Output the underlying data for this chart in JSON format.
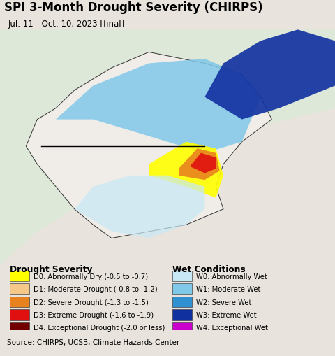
{
  "title": "SPI 3-Month Drought Severity (CHIRPS)",
  "subtitle": "Jul. 11 - Oct. 10, 2023 [final]",
  "source_text": "Source: CHIRPS, UCSB, Climate Hazards Center",
  "title_fontsize": 12,
  "subtitle_fontsize": 8.5,
  "source_fontsize": 7.5,
  "background_color": "#e8e4dd",
  "ocean_color": "#b8eef8",
  "land_color": "#f0ede8",
  "map_bg_color": "#dde8d8",
  "drought_legend": [
    {
      "code": "D0",
      "label": "D0: Abnormally Dry (-0.5 to -0.7)",
      "color": "#ffff00"
    },
    {
      "code": "D1",
      "label": "D1: Moderate Drought (-0.8 to -1.2)",
      "color": "#f5c88a"
    },
    {
      "code": "D2",
      "label": "D2: Severe Drought (-1.3 to -1.5)",
      "color": "#e8821e"
    },
    {
      "code": "D3",
      "label": "D3: Extreme Drought (-1.6 to -1.9)",
      "color": "#e01010"
    },
    {
      "code": "D4",
      "label": "D4: Exceptional Drought (-2.0 or less)",
      "color": "#730000"
    }
  ],
  "wet_legend": [
    {
      "code": "W0",
      "label": "W0: Abnormally Wet",
      "color": "#c8e8f5"
    },
    {
      "code": "W1",
      "label": "W1: Moderate Wet",
      "color": "#80c8e8"
    },
    {
      "code": "W2",
      "label": "W2: Severe Wet",
      "color": "#3090d0"
    },
    {
      "code": "W3",
      "label": "W3: Extreme Wet",
      "color": "#1030a0"
    },
    {
      "code": "W4",
      "label": "W4: Exceptional Wet",
      "color": "#cc00cc"
    }
  ],
  "legend_drought_title": "Drought Severity",
  "legend_wet_title": "Wet Conditions",
  "map_extent_lon": [
    123.5,
    132.5
  ],
  "map_extent_lat": [
    33.0,
    43.5
  ]
}
